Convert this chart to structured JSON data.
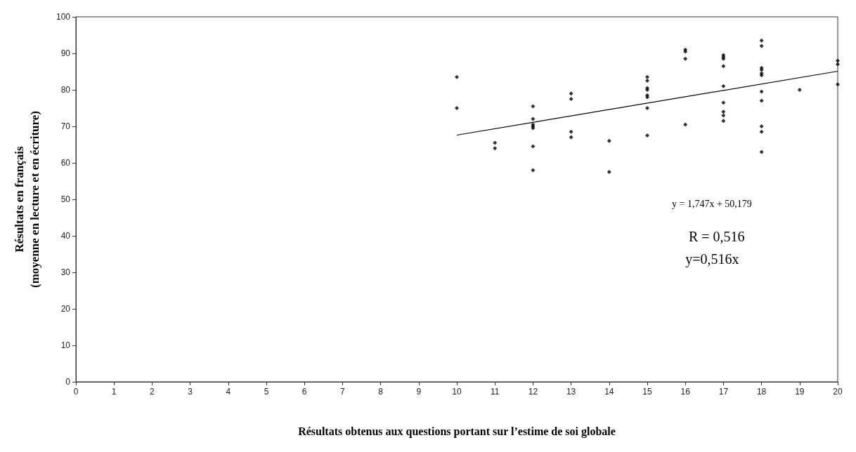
{
  "chart_data": {
    "type": "scatter",
    "xlabel": "Résultats obtenus aux questions portant sur l’estime de soi globale",
    "ylabel": "Résultats en français\n(moyenne en lecture et en écriture)",
    "x": [
      10,
      10,
      11,
      11,
      12,
      12,
      12,
      12,
      12,
      12,
      12,
      13,
      13,
      13,
      13,
      14,
      14,
      15,
      15,
      15,
      15,
      15,
      15,
      15,
      15,
      16,
      16,
      16,
      16,
      17,
      17,
      17,
      17,
      17,
      17,
      17,
      17,
      17,
      18,
      18,
      18,
      18,
      18,
      18,
      18,
      18,
      18,
      18,
      18,
      19,
      20,
      20,
      20
    ],
    "series": [
      {
        "color": "#000000",
        "marker": "diamond",
        "values": [
          83.5,
          75,
          65.5,
          64,
          75.5,
          72,
          70.5,
          70,
          69.5,
          64.5,
          58,
          79,
          77.5,
          68.5,
          67,
          66,
          57.5,
          83.5,
          82.5,
          80.5,
          80,
          78.5,
          78,
          75,
          67.5,
          91,
          90.5,
          88.5,
          70.5,
          89.5,
          89,
          88.5,
          86.5,
          81,
          76.5,
          74,
          73,
          71.5,
          93.5,
          92,
          86,
          85.5,
          84.5,
          84,
          79.5,
          77,
          70,
          68.5,
          63,
          80,
          88,
          87,
          81.5
        ]
      },
      {
        "type": "line",
        "color": "#000000",
        "marker": "none",
        "line_style": "solid",
        "x": [
          10,
          20
        ],
        "values": [
          67.6,
          85.1
        ]
      }
    ],
    "xlim": [
      0,
      20
    ],
    "xticks": [
      0,
      1,
      2,
      3,
      4,
      5,
      6,
      7,
      8,
      9,
      10,
      11,
      12,
      13,
      14,
      15,
      16,
      17,
      18,
      19,
      20
    ],
    "ylim": [
      0,
      100
    ],
    "yticks": [
      0,
      10,
      20,
      30,
      40,
      50,
      60,
      70,
      80,
      90,
      100
    ],
    "grid": false,
    "annotations": [
      "y = 1,747x + 50,179",
      "R = 0,516",
      "y=0,516x"
    ]
  }
}
